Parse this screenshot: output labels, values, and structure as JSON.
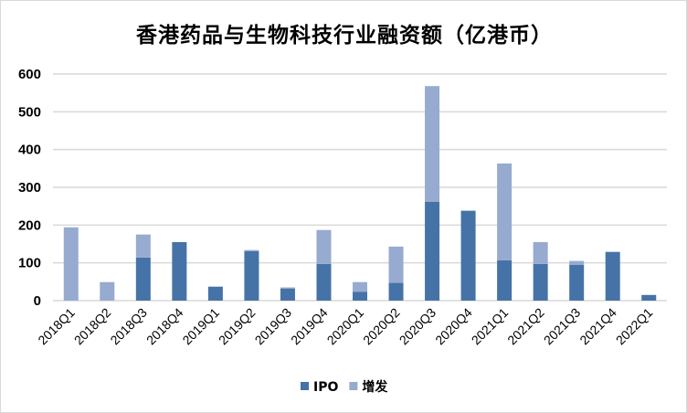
{
  "chart_data": {
    "type": "bar",
    "stacked": true,
    "title": "香港药品与生物科技行业融资额（亿港币）",
    "xlabel": "",
    "ylabel": "",
    "ylim": [
      0,
      600
    ],
    "yticks": [
      0,
      100,
      200,
      300,
      400,
      500,
      600
    ],
    "grid": true,
    "legend_position": "bottom",
    "categories": [
      "2018Q1",
      "2018Q2",
      "2018Q3",
      "2018Q4",
      "2019Q1",
      "2019Q2",
      "2019Q3",
      "2019Q4",
      "2020Q1",
      "2020Q2",
      "2020Q3",
      "2020Q4",
      "2021Q1",
      "2021Q2",
      "2021Q3",
      "2021Q4",
      "2022Q1"
    ],
    "series": [
      {
        "name": "IPO",
        "color": "#4573a7",
        "values": [
          0,
          0,
          114,
          155,
          37,
          131,
          32,
          97,
          23,
          47,
          262,
          238,
          107,
          97,
          95,
          129,
          15
        ]
      },
      {
        "name": "增发",
        "color": "#97aad0",
        "values": [
          194,
          49,
          61,
          0,
          0,
          3,
          3,
          90,
          26,
          96,
          306,
          0,
          256,
          58,
          10,
          0,
          0
        ]
      }
    ]
  }
}
